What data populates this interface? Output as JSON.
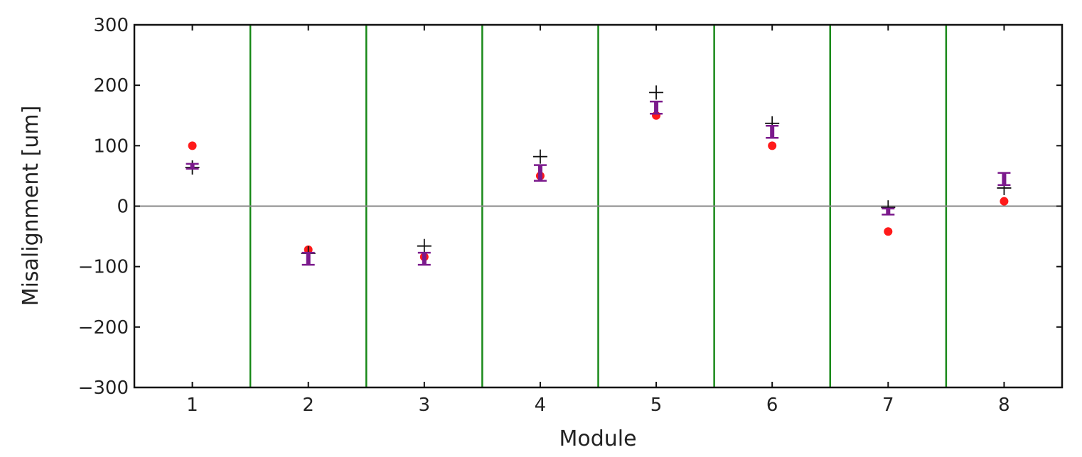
{
  "chart_data": {
    "type": "scatter",
    "xlabel": "Module",
    "ylabel": "Misalignment [um]",
    "xlim": [
      0.5,
      8.5
    ],
    "ylim": [
      -300,
      300
    ],
    "x_ticks": [
      1,
      2,
      3,
      4,
      5,
      6,
      7,
      8
    ],
    "x_tick_labels": [
      "1",
      "2",
      "3",
      "4",
      "5",
      "6",
      "7",
      "8"
    ],
    "y_ticks": [
      -300,
      -200,
      -100,
      0,
      100,
      200,
      300
    ],
    "y_tick_labels": [
      "−300",
      "−200",
      "−100",
      "0",
      "100",
      "200",
      "300"
    ],
    "module_separators": [
      1.5,
      2.5,
      3.5,
      4.5,
      5.5,
      6.5,
      7.5
    ],
    "zero_line": 0,
    "grid": false,
    "colors": {
      "red_points": "#ff1a1a",
      "black_crosses": "#111111",
      "purple_errorbars": "#7b1a8c",
      "separators": "#1a8a1a",
      "zero_line": "#888888"
    },
    "series": [
      {
        "marker": "circle",
        "color": "#ff1a1a",
        "x": [
          1,
          2,
          3,
          4,
          5,
          6,
          7,
          8
        ],
        "y": [
          100,
          -72,
          -84,
          50,
          150,
          100,
          -42,
          8
        ]
      },
      {
        "marker": "plus",
        "color": "#111111",
        "x": [
          1,
          2,
          3,
          4,
          5,
          6,
          7,
          8
        ],
        "y": [
          64,
          -78,
          -66,
          82,
          188,
          137,
          -2,
          30
        ]
      },
      {
        "marker": "errorbar",
        "color": "#7b1a8c",
        "x": [
          1,
          2,
          3,
          4,
          5,
          6,
          7,
          8
        ],
        "y": [
          66,
          -87,
          -87,
          55,
          163,
          123,
          -9,
          45
        ],
        "yerr": [
          4,
          10,
          10,
          13,
          10,
          10,
          5,
          10
        ]
      }
    ]
  }
}
